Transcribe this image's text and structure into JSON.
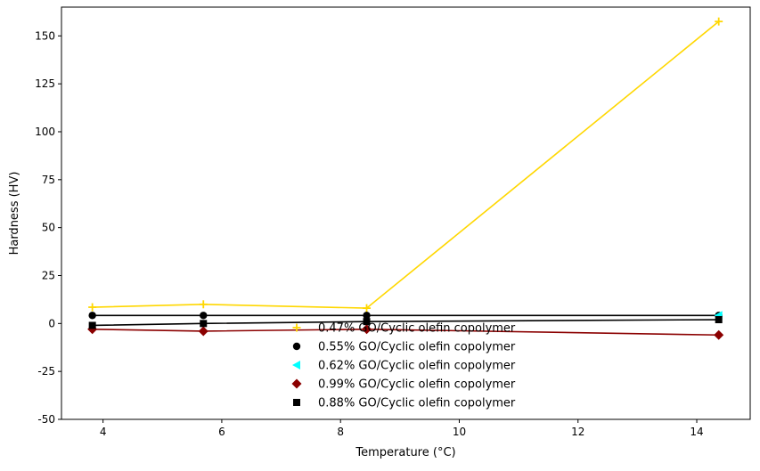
{
  "chart_data": {
    "type": "line",
    "title": "",
    "xlabel": "Temperature (°C)",
    "ylabel": "Hardness (HV)",
    "xlim": [
      3.3,
      14.9
    ],
    "ylim": [
      -50,
      165
    ],
    "xticks": [
      4,
      6,
      8,
      10,
      12,
      14
    ],
    "yticks": [
      -50,
      -25,
      0,
      25,
      50,
      75,
      100,
      125,
      150
    ],
    "grid": false,
    "legend_position": "lower center",
    "x": [
      3.82,
      5.69,
      8.44,
      14.37
    ],
    "series": [
      {
        "name": "0.47% GO/Cyclic olefin copolymer",
        "color": "#FFD700",
        "marker": "plus",
        "values": [
          8.5,
          10.0,
          8.0,
          157.5
        ]
      },
      {
        "name": "0.55% GO/Cyclic olefin copolymer",
        "color": "#000000",
        "marker": "circle",
        "values": [
          4.2,
          4.2,
          4.2,
          4.2
        ]
      },
      {
        "name": "0.62% GO/Cyclic olefin copolymer",
        "color": "#00FFFF",
        "marker": "triangle-left",
        "values": [
          null,
          null,
          null,
          4.2
        ]
      },
      {
        "name": "0.99% GO/Cyclic olefin copolymer",
        "color": "#8B0000",
        "marker": "diamond",
        "values": [
          -3.0,
          -4.0,
          -3.0,
          -6.0
        ]
      },
      {
        "name": "0.88% GO/Cyclic olefin copolymer",
        "color": "#000000",
        "marker": "square",
        "values": [
          -1.0,
          0.0,
          1.0,
          2.0
        ]
      }
    ]
  }
}
